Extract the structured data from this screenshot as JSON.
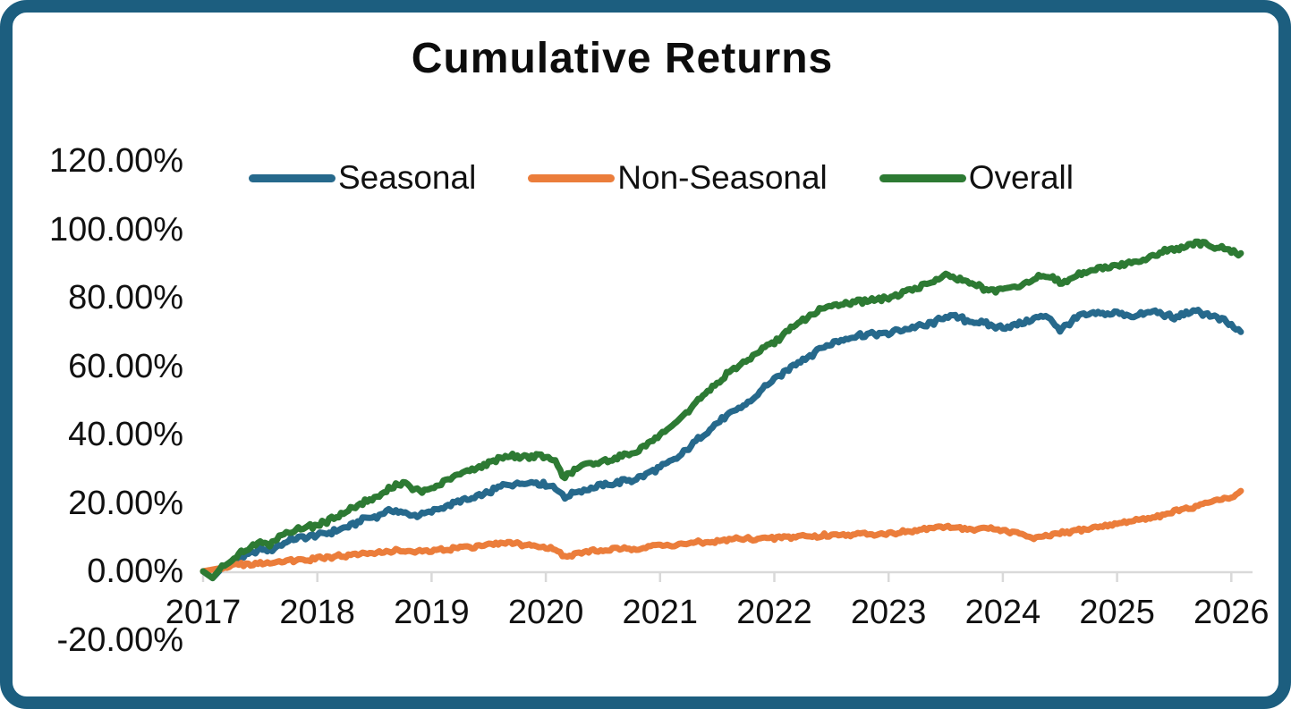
{
  "colors": {
    "frame_border": "#1C5E7F",
    "axis_line": "#D9D9D9",
    "text": "#111111",
    "seasonal": "#26698C",
    "non_seasonal": "#EB7D3B",
    "overall": "#2D7A33"
  },
  "chart_data": {
    "type": "line",
    "title": "Cumulative Returns",
    "xlabel": "",
    "ylabel": "",
    "grid": false,
    "legend_position": "top",
    "ylim": [
      -20,
      120
    ],
    "xlim": [
      2017,
      2026.17
    ],
    "y_tick_labels": [
      "120.00%",
      "100.00%",
      "80.00%",
      "60.00%",
      "40.00%",
      "20.00%",
      "0.00%",
      "-20.00%"
    ],
    "y_tick_values": [
      120,
      100,
      80,
      60,
      40,
      20,
      0,
      -20
    ],
    "x_tick_labels": [
      "2017",
      "2018",
      "2019",
      "2020",
      "2021",
      "2022",
      "2023",
      "2024",
      "2025",
      "2026"
    ],
    "x_tick_values": [
      2017,
      2018,
      2019,
      2020,
      2021,
      2022,
      2023,
      2024,
      2025,
      2026
    ],
    "x_start_year": 2017,
    "points_per_year": 12,
    "value_unit": "percent",
    "series": [
      {
        "name": "Seasonal",
        "color": "#26698C",
        "values": [
          0,
          -2,
          1,
          2.5,
          4,
          5,
          6.5,
          6,
          7.5,
          9,
          10,
          10,
          10.5,
          11,
          12,
          13,
          14,
          15.5,
          16,
          17,
          18,
          17,
          16.5,
          16.5,
          17.5,
          18.5,
          19.5,
          20.5,
          21,
          22,
          23,
          24.5,
          25.5,
          25.5,
          26,
          26,
          25.5,
          24.5,
          21.5,
          23,
          24,
          24.5,
          25,
          25.5,
          26.5,
          26.5,
          27.5,
          29,
          30.5,
          32,
          33.5,
          36,
          38.5,
          41,
          43.5,
          45.5,
          47,
          49,
          51,
          54,
          56,
          58,
          60.5,
          62,
          63.5,
          65.5,
          66.5,
          67.5,
          68.5,
          69,
          69.5,
          69.5,
          69.5,
          70.5,
          71,
          71.5,
          72,
          73,
          74.5,
          74.5,
          73.5,
          73,
          72.5,
          71.5,
          71.5,
          72,
          72.5,
          73.5,
          74.5,
          74,
          70.5,
          72.5,
          74.5,
          75,
          75.5,
          75,
          75.5,
          75,
          74.5,
          75.5,
          76,
          75,
          74,
          75.5,
          76,
          75.5,
          74.5,
          73.5,
          72,
          70
        ]
      },
      {
        "name": "Non-Seasonal",
        "color": "#EB7D3B",
        "values": [
          0,
          0.5,
          1,
          1.5,
          2,
          2,
          2.5,
          2.5,
          3,
          3,
          3.5,
          3.5,
          4,
          4,
          4.5,
          4.5,
          5,
          5,
          5.5,
          5.5,
          6,
          6,
          5.5,
          6,
          6,
          6.5,
          6.5,
          7,
          7,
          7.5,
          8,
          8,
          8.5,
          8,
          7.5,
          7.5,
          7,
          6.5,
          4,
          5,
          5.5,
          6,
          6,
          6.5,
          6.5,
          6.5,
          7,
          7.5,
          7.5,
          7.5,
          8,
          8,
          8.5,
          8.5,
          9,
          9,
          9.5,
          9.5,
          9.5,
          9.5,
          9.5,
          10,
          10,
          10.5,
          10,
          10.5,
          10.5,
          11,
          10.5,
          11,
          11,
          11,
          11,
          11.5,
          11.5,
          12,
          12.5,
          12.5,
          13,
          13,
          12.5,
          12,
          12.5,
          12.5,
          12,
          11.5,
          11,
          9.5,
          10,
          10.5,
          11,
          11.5,
          12,
          12.5,
          13,
          13.5,
          14,
          14.5,
          15,
          15.5,
          16,
          16.5,
          17.5,
          18,
          18.5,
          19.5,
          20.5,
          21,
          21.5,
          23.5
        ]
      },
      {
        "name": "Overall",
        "color": "#2D7A33",
        "values": [
          0,
          -2,
          1.5,
          3.5,
          5.5,
          7,
          8.5,
          8,
          10,
          11.5,
          12.5,
          13,
          13.5,
          14.5,
          16,
          17.5,
          19,
          20.5,
          21.5,
          23,
          25,
          26,
          24,
          23.5,
          24,
          25.5,
          27,
          28.5,
          29.5,
          30.5,
          31.5,
          33,
          34,
          33.5,
          33.5,
          34,
          33.5,
          32,
          27.5,
          29.5,
          31,
          31.5,
          32,
          33,
          34,
          34.5,
          36,
          38,
          39.5,
          41.5,
          44,
          47,
          50,
          52.5,
          55,
          57.5,
          59.5,
          61.5,
          63.5,
          65.5,
          67,
          69,
          71.5,
          73.5,
          75,
          76.5,
          77.5,
          78,
          78.5,
          79,
          79.5,
          79.5,
          80,
          81,
          82,
          83,
          84,
          85.5,
          86.5,
          86,
          85,
          84,
          82.5,
          82,
          82.5,
          83,
          83.5,
          85,
          86.5,
          86,
          84.5,
          85.5,
          87,
          88,
          88.5,
          89,
          89.5,
          90,
          90.5,
          91.5,
          92.5,
          93.5,
          94,
          94.5,
          95.5,
          96,
          95,
          94.5,
          93.5,
          93
        ]
      }
    ]
  }
}
